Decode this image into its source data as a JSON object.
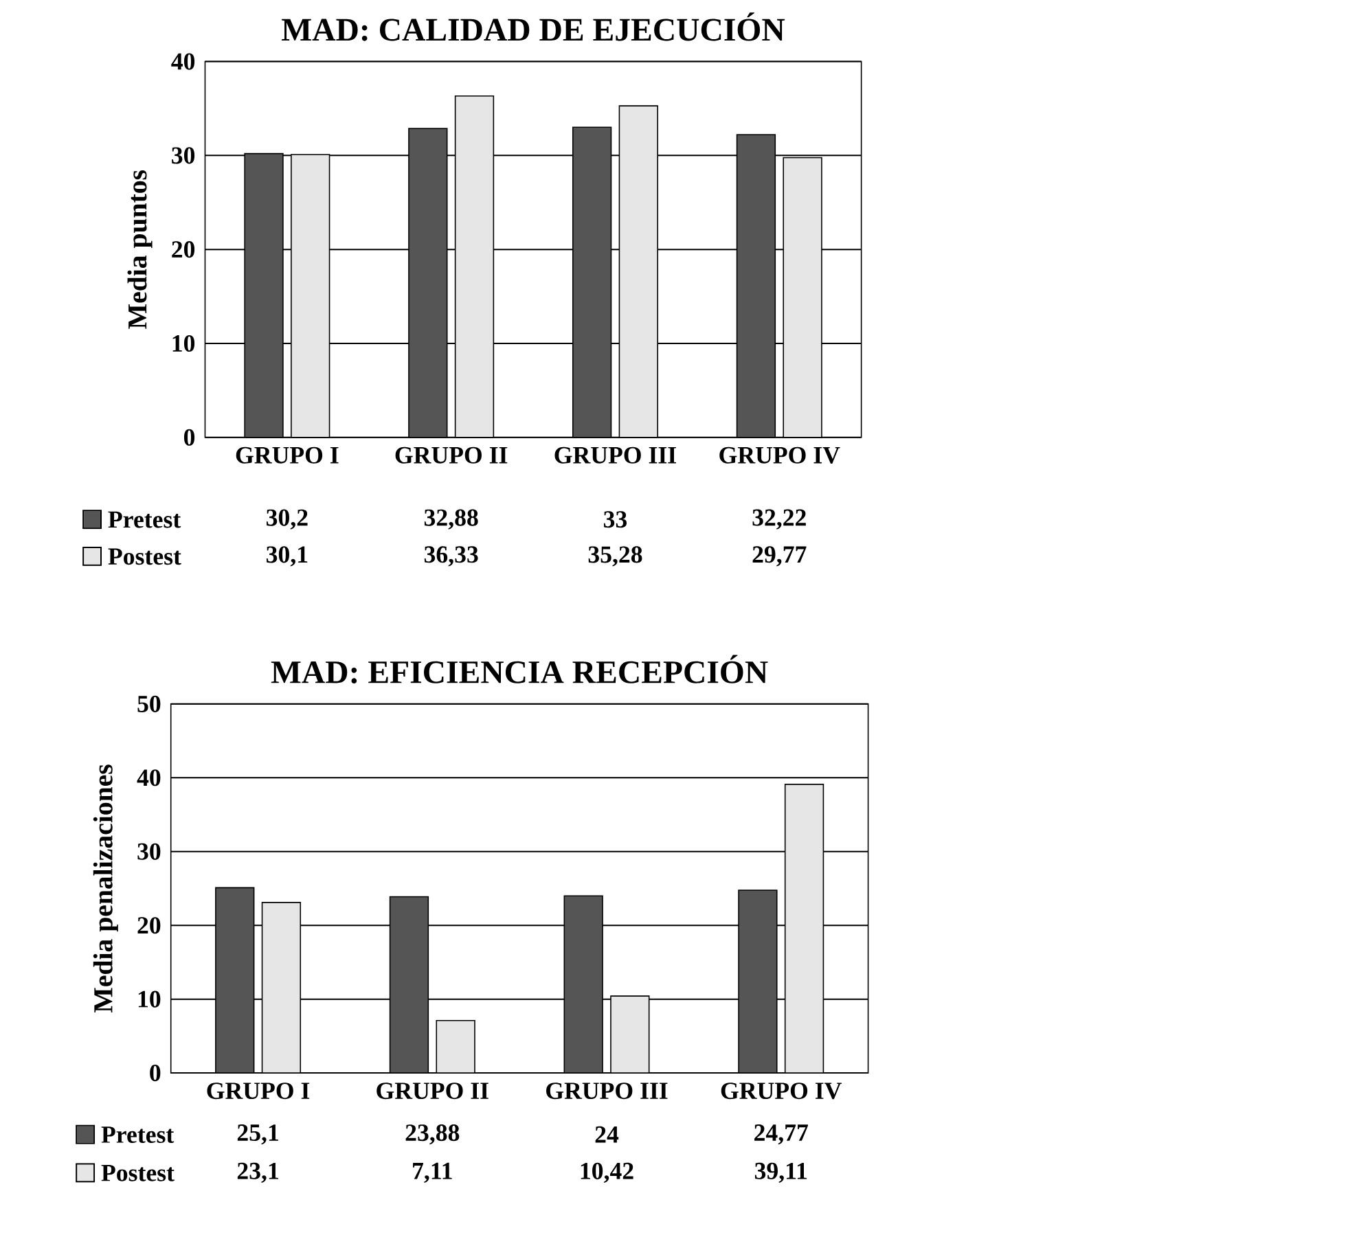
{
  "chart_data": [
    {
      "type": "bar",
      "title": "MAD: CALIDAD DE EJECUCIÓN",
      "ylabel": "Media puntos",
      "categories": [
        "GRUPO I",
        "GRUPO II",
        "GRUPO III",
        "GRUPO IV"
      ],
      "series": [
        {
          "name": "Pretest",
          "color": "#555555",
          "values": [
            30.2,
            32.88,
            33,
            32.22
          ],
          "value_labels": [
            "30,2",
            "32,88",
            "33",
            "32,22"
          ]
        },
        {
          "name": "Postest",
          "color": "#e6e6e6",
          "values": [
            30.1,
            36.33,
            35.28,
            29.77
          ],
          "value_labels": [
            "30,1",
            "36,33",
            "35,28",
            "29,77"
          ]
        }
      ],
      "ylim": [
        0,
        40
      ],
      "yticks": [
        0,
        10,
        20,
        30,
        40
      ],
      "grid": "y",
      "legend": "bottom"
    },
    {
      "type": "bar",
      "title": "MAD: EFICIENCIA RECEPCIÓN",
      "ylabel": "Media penalizaciones",
      "categories": [
        "GRUPO I",
        "GRUPO II",
        "GRUPO III",
        "GRUPO IV"
      ],
      "series": [
        {
          "name": "Pretest",
          "color": "#555555",
          "values": [
            25.1,
            23.88,
            24,
            24.77
          ],
          "value_labels": [
            "25,1",
            "23,88",
            "24",
            "24,77"
          ]
        },
        {
          "name": "Postest",
          "color": "#e6e6e6",
          "values": [
            23.1,
            7.11,
            10.42,
            39.11
          ],
          "value_labels": [
            "23,1",
            "7,11",
            "10,42",
            "39,11"
          ]
        }
      ],
      "ylim": [
        0,
        50
      ],
      "yticks": [
        0,
        10,
        20,
        30,
        40,
        50
      ],
      "grid": "y",
      "legend": "bottom"
    }
  ]
}
